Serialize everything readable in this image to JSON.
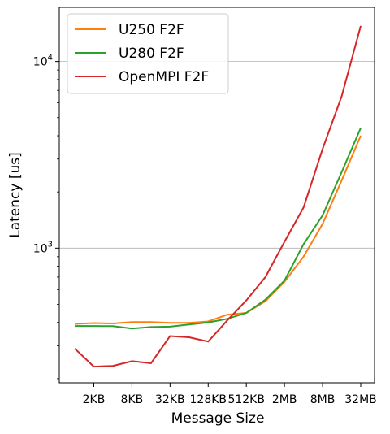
{
  "chart_data": {
    "type": "line",
    "xlabel": "Message Size",
    "ylabel": "Latency [us]",
    "yscale": "log",
    "ylim": [
      190,
      19500
    ],
    "x_tick_labels": [
      "2KB",
      "8KB",
      "32KB",
      "128KB",
      "512KB",
      "2MB",
      "8MB",
      "32MB"
    ],
    "y_tick_labels": [
      {
        "value": 1000,
        "base": "10",
        "exp": "3"
      },
      {
        "value": 10000,
        "base": "10",
        "exp": "4"
      }
    ],
    "grid": "y-major",
    "legend_position": "top-left",
    "x": [
      "1KB",
      "2KB",
      "4KB",
      "8KB",
      "16KB",
      "32KB",
      "64KB",
      "128KB",
      "256KB",
      "512KB",
      "1MB",
      "2MB",
      "4MB",
      "8MB",
      "16MB",
      "32MB"
    ],
    "series": [
      {
        "name": "U250 F2F",
        "color": "#ff7f0e",
        "values": [
          393,
          397,
          395,
          402,
          402,
          398,
          398,
          405,
          440,
          450,
          520,
          660,
          900,
          1350,
          2300,
          4000
        ]
      },
      {
        "name": "U280 F2F",
        "color": "#2ca02c",
        "values": [
          383,
          383,
          382,
          371,
          378,
          380,
          390,
          400,
          418,
          450,
          530,
          670,
          1050,
          1500,
          2550,
          4400
        ]
      },
      {
        "name": "OpenMPI F2F",
        "color": "#d62728",
        "values": [
          290,
          232,
          234,
          248,
          242,
          338,
          333,
          316,
          410,
          525,
          700,
          1080,
          1650,
          3400,
          6500,
          15500
        ]
      }
    ]
  }
}
